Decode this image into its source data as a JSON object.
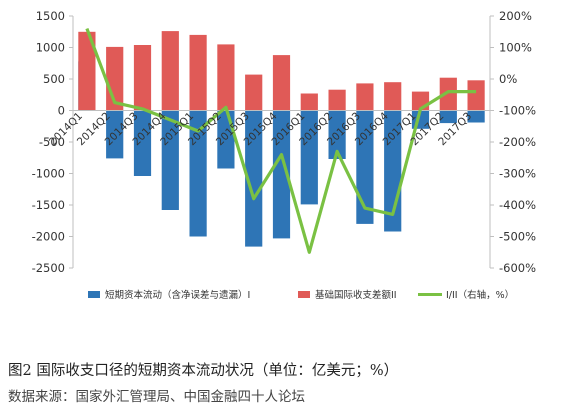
{
  "chart_data": {
    "type": "bar",
    "categories": [
      "2014Q1",
      "2014Q2",
      "2014Q3",
      "2014Q4",
      "2015Q1",
      "2015Q2",
      "2015Q3",
      "2015Q4",
      "2016Q1",
      "2016Q2",
      "2016Q3",
      "2016Q4",
      "2017Q1",
      "2017Q2",
      "2017Q3"
    ],
    "series": [
      {
        "name": "短期资本流动（含净误差与遗漏）I",
        "kind": "bar",
        "axis": "left",
        "color": "#2e75b6",
        "values": [
          780,
          -760,
          -1040,
          -1580,
          -2000,
          -920,
          -2160,
          -2030,
          -1490,
          -770,
          -1800,
          -1920,
          -290,
          -200,
          -190
        ]
      },
      {
        "name": "基础国际收支差额II",
        "kind": "bar",
        "axis": "left",
        "color": "#e05a57",
        "values": [
          1250,
          1010,
          1040,
          1260,
          1200,
          1050,
          570,
          880,
          270,
          330,
          430,
          450,
          300,
          520,
          480
        ]
      },
      {
        "name": "I/II（右轴，%）",
        "kind": "line",
        "axis": "right",
        "color": "#7ac143",
        "values": [
          160,
          -75,
          -95,
          -130,
          -165,
          -90,
          -380,
          -240,
          -550,
          -230,
          -410,
          -430,
          -95,
          -40,
          -40
        ]
      }
    ],
    "left_axis": {
      "min": -2500,
      "max": 1500,
      "ticks": [
        "1500",
        "1000",
        "500",
        "0",
        "-500",
        "-1000",
        "-1500",
        "-2000",
        "-2500"
      ]
    },
    "right_axis": {
      "min": -600,
      "max": 200,
      "ticks": [
        "200%",
        "100%",
        "0%",
        "-100%",
        "-200%",
        "-300%",
        "-400%",
        "-500%",
        "-600%"
      ]
    },
    "legend": [
      "短期资本流动（含净误差与遗漏）I",
      "基础国际收支差额II",
      "I/II（右轴，%）"
    ],
    "legend_position": "bottom",
    "grid": false
  },
  "caption": "图2   国际收支口径的短期资本流动状况（单位：亿美元；%）",
  "source": "数据来源：国家外汇管理局、中国金融四十人论坛"
}
